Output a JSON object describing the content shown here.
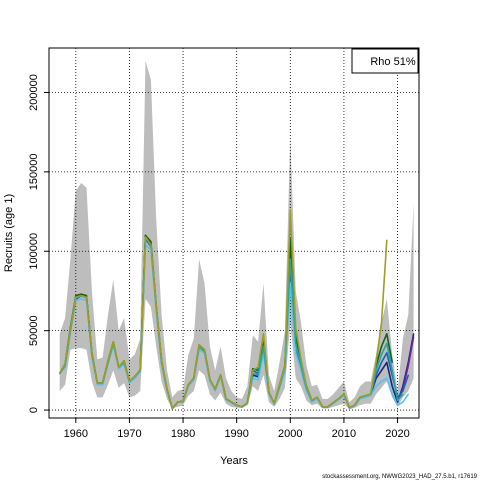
{
  "chart_data": {
    "type": "line",
    "xlabel": "Years",
    "ylabel": "Recruits (age 1)",
    "xlim": [
      1955,
      2024
    ],
    "ylim": [
      -5000,
      228000
    ],
    "x_ticks": [
      1960,
      1970,
      1980,
      1990,
      2000,
      2010,
      2020
    ],
    "y_ticks": [
      0,
      50000,
      100000,
      150000,
      200000
    ],
    "grid": true,
    "legend": {
      "position": "top-right",
      "text": "Rho 51%"
    },
    "footer": "stockassessment.org, NWWG2023_HAD_27.5.b1, r17619",
    "confidence_band": {
      "x": [
        1957,
        1958,
        1959,
        1960,
        1961,
        1962,
        1963,
        1964,
        1965,
        1966,
        1967,
        1968,
        1969,
        1970,
        1971,
        1972,
        1973,
        1974,
        1975,
        1976,
        1977,
        1978,
        1979,
        1980,
        1981,
        1982,
        1983,
        1984,
        1985,
        1986,
        1987,
        1988,
        1989,
        1990,
        1991,
        1992,
        1993,
        1994,
        1995,
        1996,
        1997,
        1998,
        1999,
        2000,
        2001,
        2002,
        2003,
        2004,
        2005,
        2006,
        2007,
        2008,
        2009,
        2010,
        2011,
        2012,
        2013,
        2014,
        2015,
        2016,
        2017,
        2018,
        2019,
        2020,
        2021,
        2022,
        2023
      ],
      "upper": [
        48000,
        58000,
        95000,
        138000,
        143000,
        140000,
        75000,
        32000,
        33000,
        60000,
        82000,
        50000,
        58000,
        32000,
        35000,
        45000,
        220000,
        208000,
        120000,
        60000,
        25000,
        8000,
        12000,
        13000,
        35000,
        45000,
        95000,
        80000,
        40000,
        25000,
        40000,
        20000,
        12000,
        8000,
        7000,
        15000,
        47000,
        43000,
        80000,
        22000,
        12000,
        30000,
        50000,
        172000,
        75000,
        55000,
        28000,
        15000,
        16000,
        7000,
        7000,
        10000,
        14000,
        18000,
        5000,
        8000,
        15000,
        18000,
        18000,
        35000,
        55000,
        70000,
        35000,
        12000,
        45000,
        60000,
        130000
      ],
      "lower": [
        12000,
        16000,
        38000,
        39000,
        39000,
        38000,
        18000,
        8000,
        8000,
        16000,
        25000,
        14000,
        17000,
        8000,
        9000,
        12000,
        70000,
        65000,
        40000,
        18000,
        7000,
        1000,
        2000,
        3000,
        9000,
        12000,
        25000,
        22000,
        10000,
        6000,
        11000,
        4000,
        2000,
        1500,
        1500,
        3000,
        15000,
        12000,
        22000,
        5000,
        2000,
        7000,
        14000,
        55000,
        20000,
        15000,
        6000,
        3000,
        4000,
        1000,
        1000,
        2000,
        3000,
        4000,
        500,
        1500,
        3000,
        4000,
        4000,
        10000,
        14000,
        18000,
        8000,
        2000,
        8000,
        12000,
        20000
      ]
    },
    "series": [
      {
        "color": "#1a237e",
        "x": [
          1957,
          1958,
          1959,
          1960,
          1961,
          1962,
          1963,
          1964,
          1965,
          1966,
          1967,
          1968,
          1969,
          1970,
          1971,
          1972,
          1973,
          1974,
          1975,
          1976,
          1977,
          1978,
          1979,
          1980,
          1981,
          1982,
          1983,
          1984,
          1985,
          1986,
          1987,
          1988,
          1989,
          1990,
          1991,
          1992,
          1993,
          1994,
          1995,
          1996,
          1997,
          1998,
          1999,
          2000,
          2001,
          2002,
          2003,
          2004,
          2005,
          2006,
          2007,
          2008,
          2009,
          2010,
          2011,
          2012,
          2013,
          2014,
          2015,
          2016,
          2017,
          2018,
          2019,
          2020,
          2021,
          2022,
          2023
        ],
        "values": [
          23000,
          28000,
          50000,
          70000,
          72000,
          71000,
          35000,
          17000,
          17000,
          30000,
          42000,
          27000,
          30000,
          18000,
          21000,
          25000,
          110000,
          104000,
          65000,
          30000,
          13000,
          1000,
          5000,
          5500,
          16000,
          20000,
          40000,
          37000,
          19000,
          13000,
          22000,
          7000,
          5000,
          3000,
          2000,
          4500,
          22000,
          21000,
          40000,
          11000,
          4000,
          15000,
          27000,
          98000,
          42000,
          28000,
          15000,
          6000,
          8000,
          2000,
          2000,
          4500,
          7000,
          10000,
          1500,
          3000,
          8000,
          9000,
          10000,
          20000,
          25000,
          30000,
          15000,
          5000,
          15000,
          30000,
          48000
        ]
      },
      {
        "color": "#7b1fa2",
        "x": [
          2020,
          2021,
          2022,
          2023
        ],
        "values": [
          6000,
          13000,
          28000,
          46000
        ]
      },
      {
        "color": "#1565c0",
        "x": [
          1957,
          1958,
          1959,
          1960,
          1961,
          1962,
          1963,
          1964,
          1965,
          1966,
          1967,
          1968,
          1969,
          1970,
          1971,
          1972,
          1973,
          1974,
          1975,
          1976,
          1977,
          1978,
          1979,
          1980,
          1981,
          1982,
          1983,
          1984,
          1985,
          1986,
          1987,
          1988,
          1989,
          1990,
          1991,
          1992,
          1993,
          1994,
          1995,
          1996,
          1997,
          1998,
          1999,
          2000,
          2001,
          2002,
          2003,
          2004,
          2005,
          2006,
          2007,
          2008,
          2009,
          2010,
          2011,
          2012,
          2013,
          2014,
          2015,
          2016,
          2017,
          2018,
          2019,
          2020,
          2021,
          2022
        ],
        "values": [
          23000,
          28000,
          50000,
          70000,
          72000,
          71000,
          35000,
          17000,
          17000,
          30000,
          42000,
          27000,
          30000,
          18000,
          21000,
          25000,
          108000,
          103000,
          65000,
          30000,
          13000,
          1000,
          5000,
          5500,
          16000,
          20000,
          40000,
          37000,
          19000,
          13000,
          22000,
          7000,
          5000,
          3000,
          2000,
          4500,
          25000,
          23000,
          42000,
          11000,
          4000,
          15000,
          27000,
          90000,
          40000,
          27000,
          14000,
          6000,
          8000,
          2000,
          2000,
          4500,
          7000,
          10000,
          1500,
          3000,
          8000,
          9000,
          10000,
          22000,
          30000,
          36000,
          22000,
          8000,
          12000,
          22000
        ]
      },
      {
        "color": "#1b5e20",
        "x": [
          1957,
          1958,
          1959,
          1960,
          1961,
          1962,
          1963,
          1964,
          1965,
          1966,
          1967,
          1968,
          1969,
          1970,
          1971,
          1972,
          1973,
          1974,
          1975,
          1976,
          1977,
          1978,
          1979,
          1980,
          1981,
          1982,
          1983,
          1984,
          1985,
          1986,
          1987,
          1988,
          1989,
          1990,
          1991,
          1992,
          1993,
          1994,
          1995,
          1996,
          1997,
          1998,
          1999,
          2000,
          2001,
          2002,
          2003,
          2004,
          2005,
          2006,
          2007,
          2008,
          2009,
          2010,
          2011,
          2012,
          2013,
          2014,
          2015,
          2016,
          2017,
          2018,
          2019
        ],
        "values": [
          23000,
          29000,
          52000,
          72000,
          73000,
          72000,
          36000,
          17000,
          17000,
          31000,
          43000,
          27000,
          31000,
          18000,
          21000,
          25000,
          110000,
          106000,
          66000,
          31000,
          13000,
          1000,
          5000,
          5500,
          16000,
          20000,
          41000,
          38000,
          19000,
          13000,
          22000,
          7000,
          5000,
          3000,
          2000,
          4500,
          26000,
          25000,
          45000,
          11000,
          4000,
          16000,
          28000,
          108000,
          46000,
          30000,
          15000,
          6000,
          8000,
          2000,
          2000,
          4500,
          7000,
          10000,
          1500,
          3000,
          8000,
          9000,
          10000,
          28000,
          40000,
          48000,
          30000
        ]
      },
      {
        "color": "#4fc3f7",
        "x": [
          1957,
          1958,
          1959,
          1960,
          1961,
          1962,
          1963,
          1964,
          1965,
          1966,
          1967,
          1968,
          1969,
          1970,
          1971,
          1972,
          1973,
          1974,
          1975,
          1976,
          1977,
          1978,
          1979,
          1980,
          1981,
          1982,
          1983,
          1984,
          1985,
          1986,
          1987,
          1988,
          1989,
          1990,
          1991,
          1992,
          1993,
          1994,
          1995,
          1996,
          1997,
          1998,
          1999,
          2000,
          2001,
          2002,
          2003,
          2004,
          2005,
          2006,
          2007,
          2008,
          2009,
          2010,
          2011,
          2012,
          2013,
          2014,
          2015,
          2016,
          2017,
          2018,
          2019,
          2020,
          2021,
          2022
        ],
        "values": [
          23000,
          27000,
          49000,
          69000,
          70000,
          69000,
          34000,
          16000,
          16000,
          29000,
          41000,
          26000,
          29000,
          17000,
          20000,
          24000,
          104000,
          101000,
          63000,
          29000,
          12000,
          1000,
          5000,
          5000,
          15000,
          19000,
          38000,
          36000,
          18000,
          12000,
          21000,
          6500,
          4500,
          2500,
          1800,
          4000,
          20000,
          19000,
          36000,
          10000,
          3500,
          14000,
          24000,
          80000,
          36000,
          25000,
          12000,
          5000,
          7000,
          1800,
          1800,
          4000,
          6500,
          9000,
          1200,
          2500,
          7000,
          8000,
          9000,
          15000,
          18000,
          20000,
          10000,
          3000,
          5000,
          10000
        ]
      },
      {
        "color": "#26a69a",
        "x": [
          1957,
          1958,
          1959,
          1960,
          1961,
          1962,
          1963,
          1964,
          1965,
          1966,
          1967,
          1968,
          1969,
          1970,
          1971,
          1972,
          1973,
          1974,
          1975,
          1976,
          1977,
          1978,
          1979,
          1980,
          1981,
          1982,
          1983,
          1984,
          1985,
          1986,
          1987,
          1988,
          1989,
          1990,
          1991,
          1992,
          1993,
          1994,
          1995,
          1996,
          1997,
          1998,
          1999,
          2000,
          2001,
          2002,
          2003,
          2004,
          2005,
          2006,
          2007,
          2008,
          2009,
          2010,
          2011,
          2012,
          2013,
          2014,
          2015,
          2016,
          2017,
          2018,
          2019,
          2020,
          2021
        ],
        "values": [
          23000,
          28000,
          50000,
          71000,
          72000,
          71000,
          35000,
          17000,
          17000,
          30000,
          42000,
          27000,
          30000,
          18000,
          21000,
          25000,
          109000,
          104000,
          65000,
          30000,
          13000,
          1000,
          5000,
          5500,
          16000,
          20000,
          40000,
          37000,
          19000,
          13000,
          22000,
          7000,
          5000,
          3000,
          2000,
          4500,
          23000,
          22000,
          40000,
          11000,
          4000,
          15000,
          27000,
          95000,
          42000,
          28000,
          14000,
          6000,
          8000,
          2000,
          2000,
          4500,
          7000,
          10000,
          1500,
          3000,
          8000,
          9000,
          10000,
          25000,
          35000,
          42000,
          25000,
          6000,
          10000
        ]
      },
      {
        "color": "#9e9d24",
        "x": [
          1957,
          1958,
          1959,
          1960,
          1961,
          1962,
          1963,
          1964,
          1965,
          1966,
          1967,
          1968,
          1969,
          1970,
          1971,
          1972,
          1973,
          1974,
          1975,
          1976,
          1977,
          1978,
          1979,
          1980,
          1981,
          1982,
          1983,
          1984,
          1985,
          1986,
          1987,
          1988,
          1989,
          1990,
          1991,
          1992,
          1993,
          1994,
          1995,
          1996,
          1997,
          1998,
          1999,
          2000,
          2001,
          2002,
          2003,
          2004,
          2005,
          2006,
          2007,
          2008,
          2009,
          2010,
          2011,
          2012,
          2013,
          2014,
          2015,
          2016,
          2017,
          2018
        ],
        "values": [
          23000,
          29000,
          51000,
          71000,
          72000,
          71000,
          36000,
          17000,
          17000,
          31000,
          43000,
          27000,
          31000,
          18000,
          21000,
          25000,
          109000,
          104000,
          66000,
          31000,
          13000,
          1000,
          5000,
          5500,
          16000,
          20000,
          41000,
          38000,
          19000,
          13000,
          22000,
          7000,
          5000,
          3000,
          2000,
          4500,
          25000,
          27000,
          48000,
          11000,
          4000,
          16000,
          28000,
          126000,
          52000,
          32000,
          15000,
          6000,
          8000,
          2000,
          2000,
          4500,
          7000,
          10000,
          1500,
          3000,
          8000,
          9000,
          10000,
          30000,
          55000,
          107000
        ]
      }
    ]
  }
}
